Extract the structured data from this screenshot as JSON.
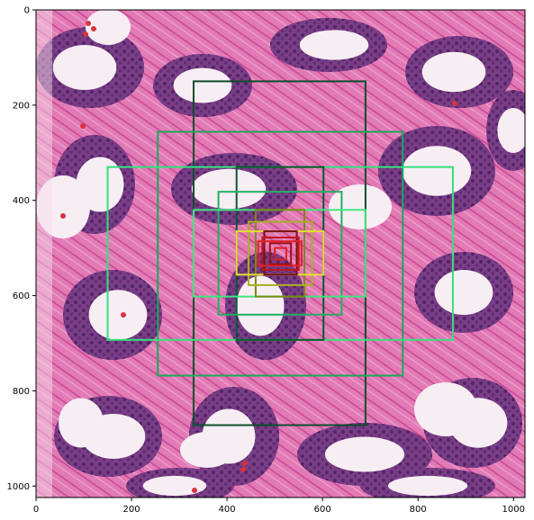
{
  "chart_data": {
    "type": "image-with-overlay-boxes",
    "xlim": [
      0,
      1024
    ],
    "ylim": [
      1024,
      0
    ],
    "xticks": [
      0,
      200,
      400,
      600,
      800,
      1000
    ],
    "yticks": [
      0,
      200,
      400,
      600,
      800,
      1000
    ],
    "xtick_labels": [
      "0",
      "200",
      "400",
      "600",
      "800",
      "1000"
    ],
    "ytick_labels": [
      "0",
      "200",
      "400",
      "600",
      "800",
      "1000"
    ],
    "grid": false,
    "tissue_colors": {
      "background": "#f3dbe8",
      "stroma": "#e27ab5",
      "stroma_dark": "#c6438f",
      "gland": "#7a3d86",
      "nuclei": "#4b2163",
      "lumen": "#f7eef4",
      "blood": "#d8333f"
    },
    "boxes": [
      {
        "x0": 330,
        "y0": 150,
        "x1": 690,
        "y1": 872,
        "color": "#0b4d2a"
      },
      {
        "x0": 255,
        "y0": 256,
        "x1": 768,
        "y1": 768,
        "color": "#1aa85a"
      },
      {
        "x0": 150,
        "y0": 330,
        "x1": 873,
        "y1": 693,
        "color": "#35e07c"
      },
      {
        "x0": 420,
        "y0": 330,
        "x1": 602,
        "y1": 693,
        "color": "#0a5a2c"
      },
      {
        "x0": 382,
        "y0": 382,
        "x1": 640,
        "y1": 640,
        "color": "#20b060"
      },
      {
        "x0": 330,
        "y0": 420,
        "x1": 690,
        "y1": 602,
        "color": "#3ee680"
      },
      {
        "x0": 460,
        "y0": 420,
        "x1": 562,
        "y1": 602,
        "color": "#7a8a10"
      },
      {
        "x0": 445,
        "y0": 445,
        "x1": 578,
        "y1": 578,
        "color": "#a8b020"
      },
      {
        "x0": 420,
        "y0": 465,
        "x1": 602,
        "y1": 556,
        "color": "#e0e030"
      },
      {
        "x0": 478,
        "y0": 465,
        "x1": 546,
        "y1": 556,
        "color": "#7a1010"
      },
      {
        "x0": 474,
        "y0": 478,
        "x1": 550,
        "y1": 546,
        "color": "#c01818"
      },
      {
        "x0": 465,
        "y0": 486,
        "x1": 556,
        "y1": 537,
        "color": "#e0202a"
      },
      {
        "x0": 490,
        "y0": 490,
        "x1": 534,
        "y1": 534,
        "color": "#a01010"
      },
      {
        "x0": 500,
        "y0": 500,
        "x1": 524,
        "y1": 524,
        "color": "#e02020"
      }
    ]
  }
}
